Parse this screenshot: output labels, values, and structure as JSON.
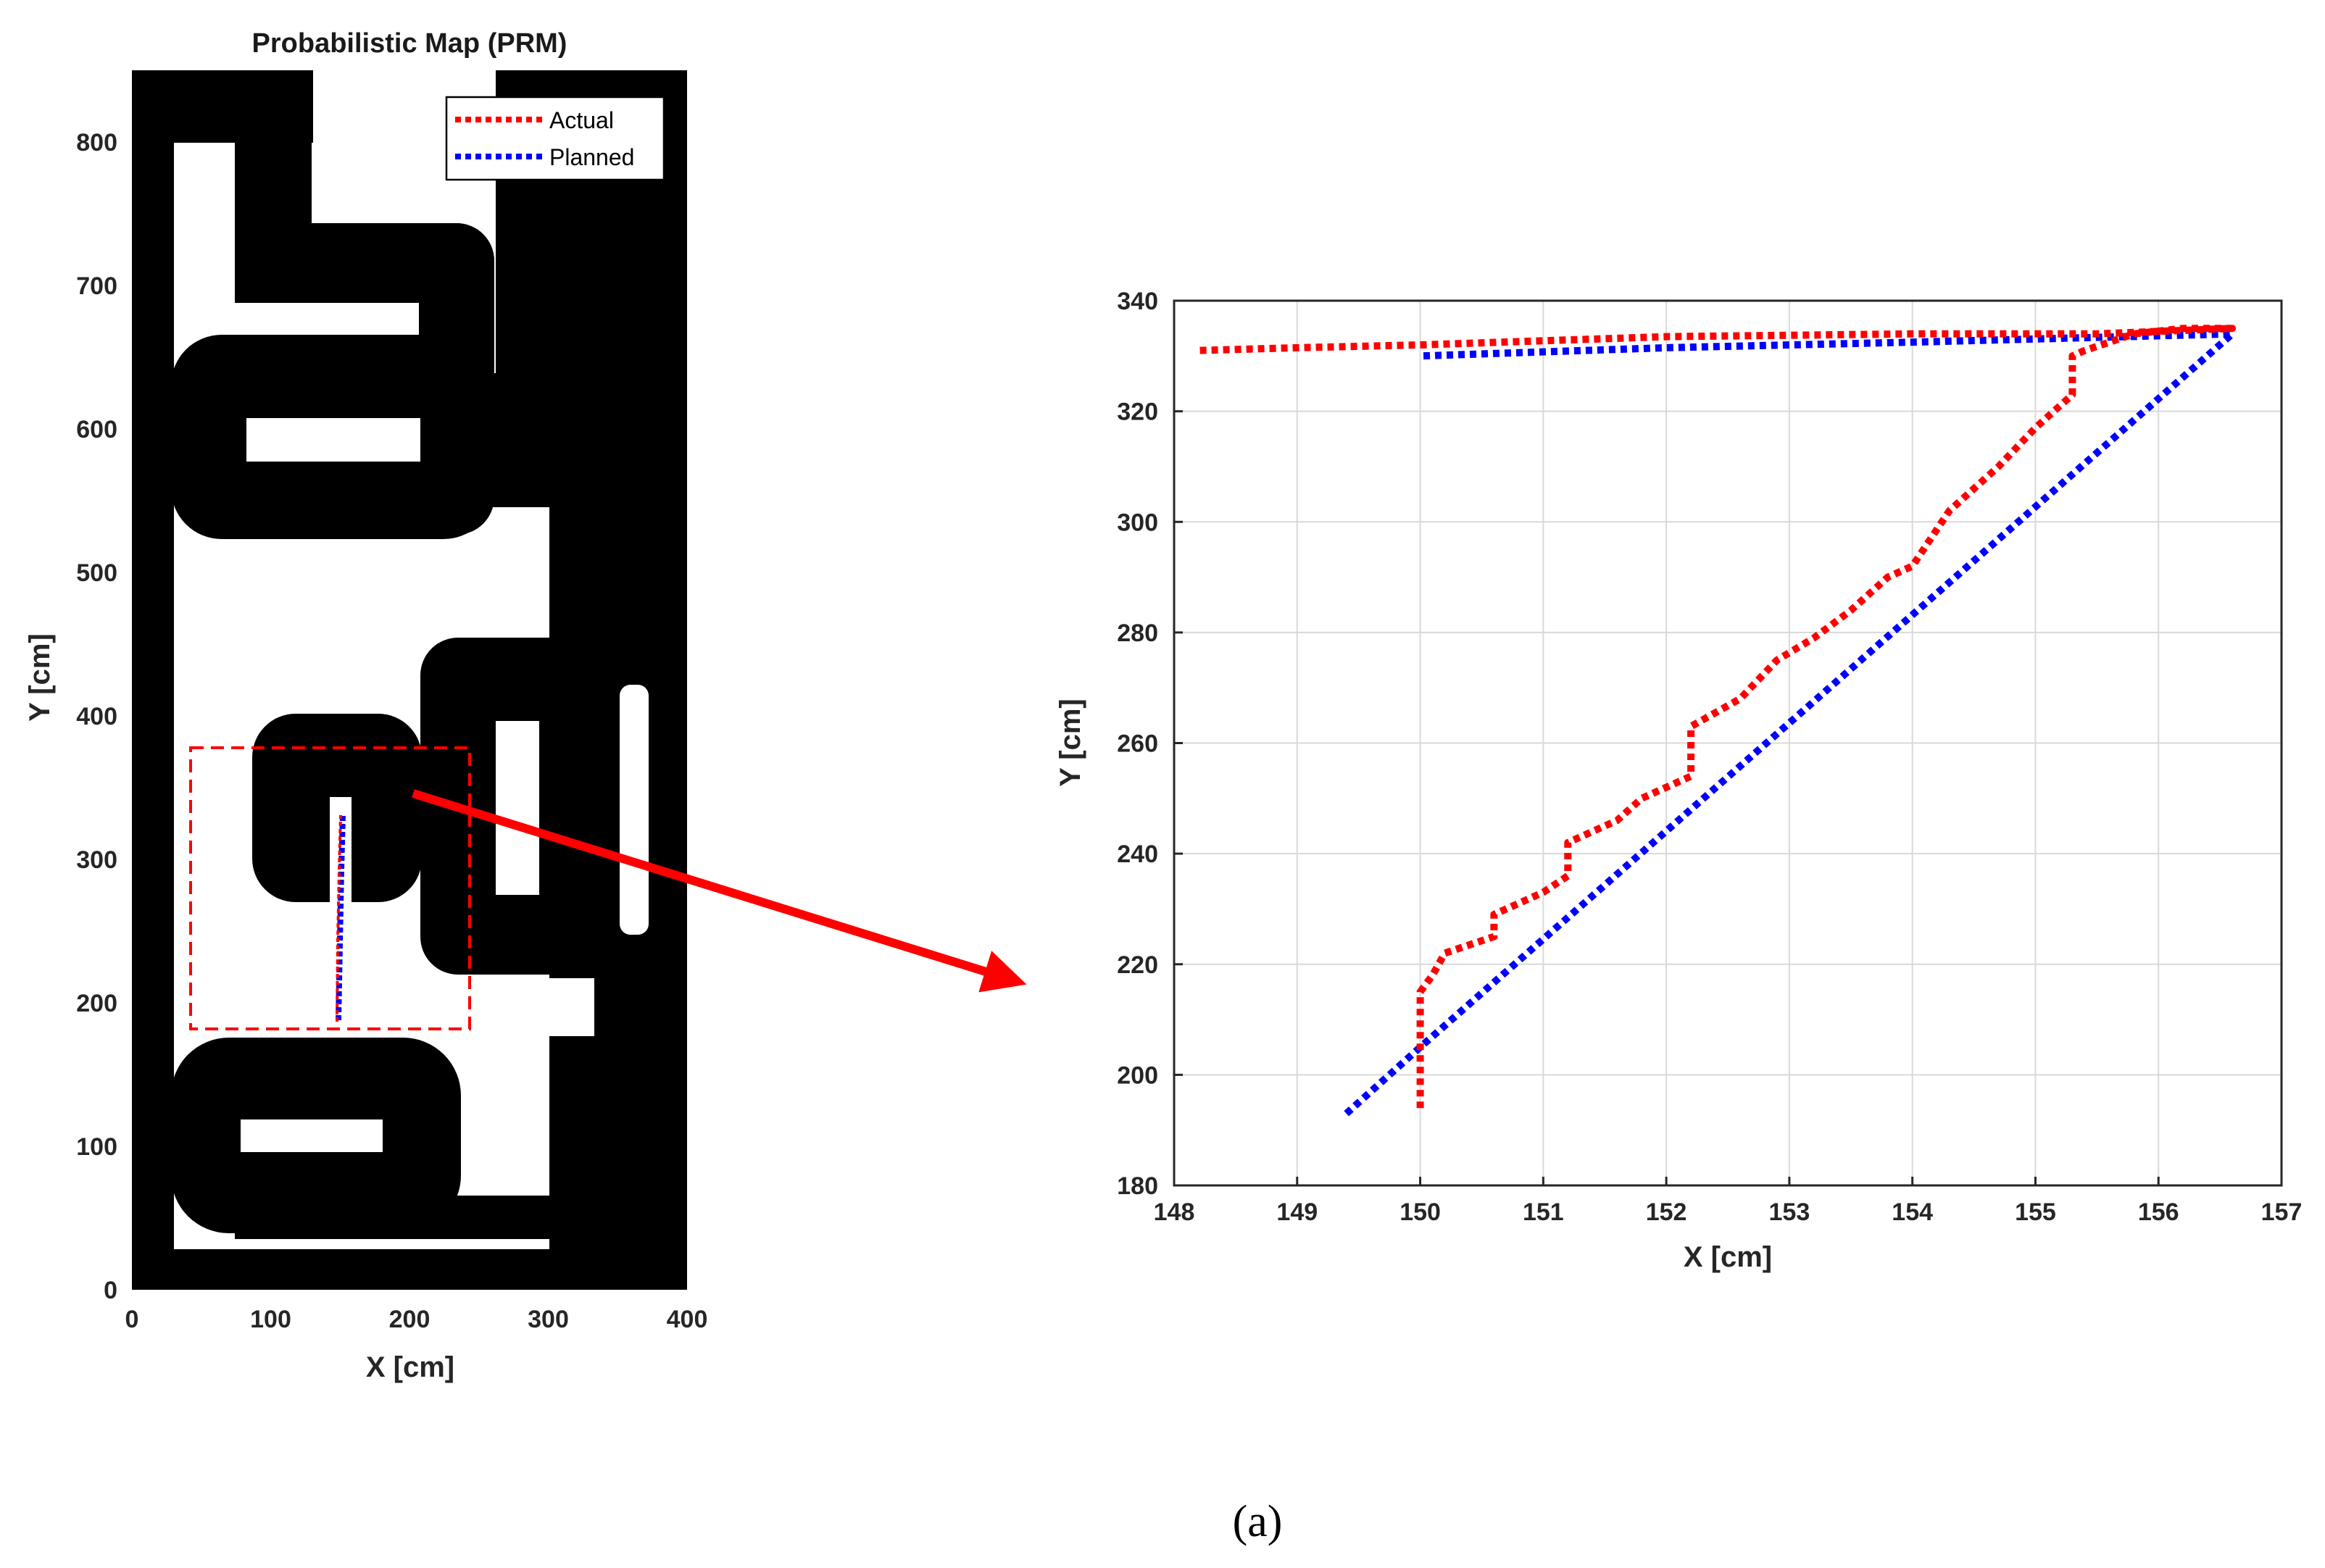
{
  "caption": "(a)",
  "colors": {
    "actual": "#ff0000",
    "planned": "#0000ff",
    "obstacle": "#000000",
    "grid": "#d9d9d9"
  },
  "chart_data": [
    {
      "type": "line",
      "title": "Probabilistic Map (PRM)",
      "xlabel": "X [cm]",
      "ylabel": "Y [cm]",
      "xlim": [
        0,
        400
      ],
      "ylim": [
        0,
        850
      ],
      "xticks": [
        "0",
        "100",
        "200",
        "300",
        "400"
      ],
      "yticks": [
        "0",
        "100",
        "200",
        "300",
        "400",
        "500",
        "600",
        "700",
        "800"
      ],
      "legend": {
        "position": "top-right",
        "entries": [
          "Actual",
          "Planned"
        ]
      },
      "series": [
        {
          "name": "Actual",
          "style": "dotted",
          "x": [
            150,
            150,
            151,
            153,
            155,
            156.6,
            148.2
          ],
          "y": [
            194,
            215,
            235,
            275,
            320,
            334,
            331
          ]
        },
        {
          "name": "Planned",
          "style": "dotted",
          "x": [
            149.4,
            156.6,
            150
          ],
          "y": [
            193,
            334,
            330
          ]
        }
      ]
    },
    {
      "type": "line",
      "title": "",
      "xlabel": "X [cm]",
      "ylabel": "Y [cm]",
      "xlim": [
        148,
        157
      ],
      "ylim": [
        180,
        340
      ],
      "grid": true,
      "xticks": [
        "148",
        "149",
        "150",
        "151",
        "152",
        "153",
        "154",
        "155",
        "156",
        "157"
      ],
      "yticks": [
        "180",
        "200",
        "220",
        "240",
        "260",
        "280",
        "300",
        "320",
        "340"
      ],
      "series": [
        {
          "name": "Actual",
          "style": "dotted",
          "x": [
            150.0,
            150.0,
            150.0,
            150.1,
            150.2,
            150.6,
            150.6,
            151.0,
            151.2,
            151.2,
            151.6,
            151.8,
            152.2,
            152.2,
            152.6,
            152.9,
            153.2,
            153.5,
            153.8,
            154.0,
            154.3,
            154.7,
            155.0,
            155.3,
            155.3,
            155.4,
            155.8,
            156.2,
            156.6,
            155.5,
            154.0,
            152.0,
            150.0,
            149.0,
            148.2
          ],
          "y": [
            194,
            205,
            215,
            218,
            222,
            225,
            229,
            233,
            236,
            242,
            246,
            250,
            254,
            263,
            268,
            275,
            279,
            284,
            290,
            292,
            302,
            310,
            317,
            323,
            330,
            331,
            334,
            335,
            335,
            334,
            334,
            333.5,
            332,
            331.5,
            331
          ]
        },
        {
          "name": "Planned",
          "style": "dotted",
          "x": [
            149.4,
            150.0,
            156.6,
            154.0,
            152.0,
            150.0
          ],
          "y": [
            193,
            205,
            334,
            332.5,
            331.5,
            330
          ]
        }
      ]
    }
  ]
}
